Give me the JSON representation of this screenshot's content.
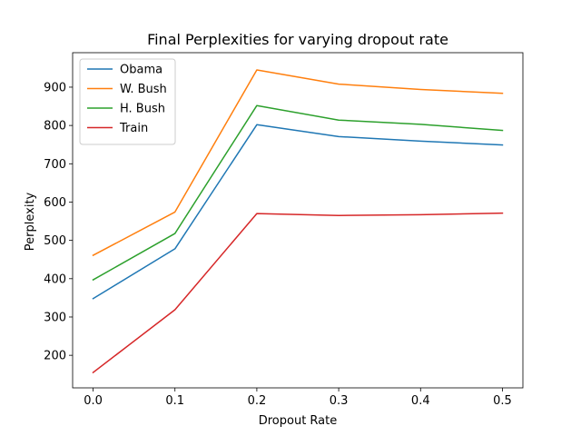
{
  "chart_data": {
    "type": "line",
    "title": "Final Perplexities for varying dropout rate",
    "xlabel": "Dropout Rate",
    "ylabel": "Perplexity",
    "x": [
      0.0,
      0.1,
      0.2,
      0.3,
      0.4,
      0.5
    ],
    "x_tick_labels": [
      "0.0",
      "0.1",
      "0.2",
      "0.3",
      "0.4",
      "0.5"
    ],
    "y_ticks": [
      200,
      300,
      400,
      500,
      600,
      700,
      800,
      900
    ],
    "xlim": [
      -0.025,
      0.525
    ],
    "ylim": [
      115,
      990
    ],
    "grid": false,
    "legend_position": "top-left",
    "series": [
      {
        "name": "Obama",
        "color": "#1f77b4",
        "values": [
          348,
          478,
          802,
          771,
          759,
          749
        ]
      },
      {
        "name": "W. Bush",
        "color": "#ff7f0e",
        "values": [
          461,
          574,
          945,
          908,
          894,
          884
        ]
      },
      {
        "name": "H. Bush",
        "color": "#2ca02c",
        "values": [
          397,
          518,
          852,
          814,
          803,
          787
        ]
      },
      {
        "name": "Train",
        "color": "#d62728",
        "values": [
          155,
          319,
          570,
          565,
          567,
          571
        ]
      }
    ]
  }
}
